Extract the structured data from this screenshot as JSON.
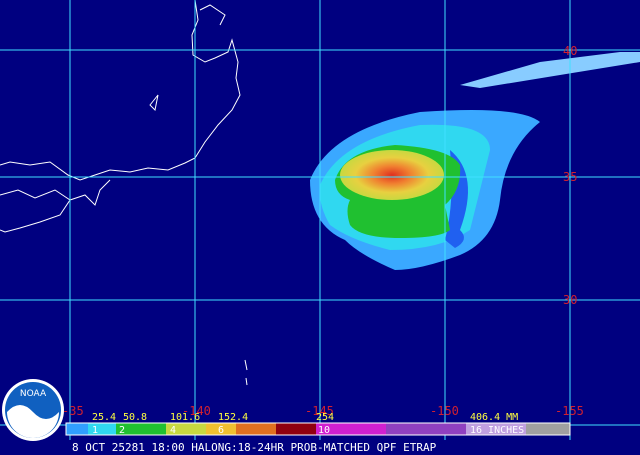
{
  "map": {
    "latitude_labels": [
      "40",
      "35",
      "30"
    ],
    "longitude_labels": [
      "-35",
      "-140",
      "-145",
      "-150",
      "-155"
    ],
    "legend": {
      "mm_labels": [
        "25.4",
        "50.8",
        "101.6",
        "152.4",
        "254",
        "406.4 MM"
      ],
      "inch_labels": [
        "1",
        "2",
        "4",
        "6",
        "10",
        "16 INCHES"
      ]
    },
    "caption": "8 OCT 25281 18:00 HALONG:18-24HR PROB-MATCHED QPF ETRAP",
    "logo": "NOAA"
  }
}
